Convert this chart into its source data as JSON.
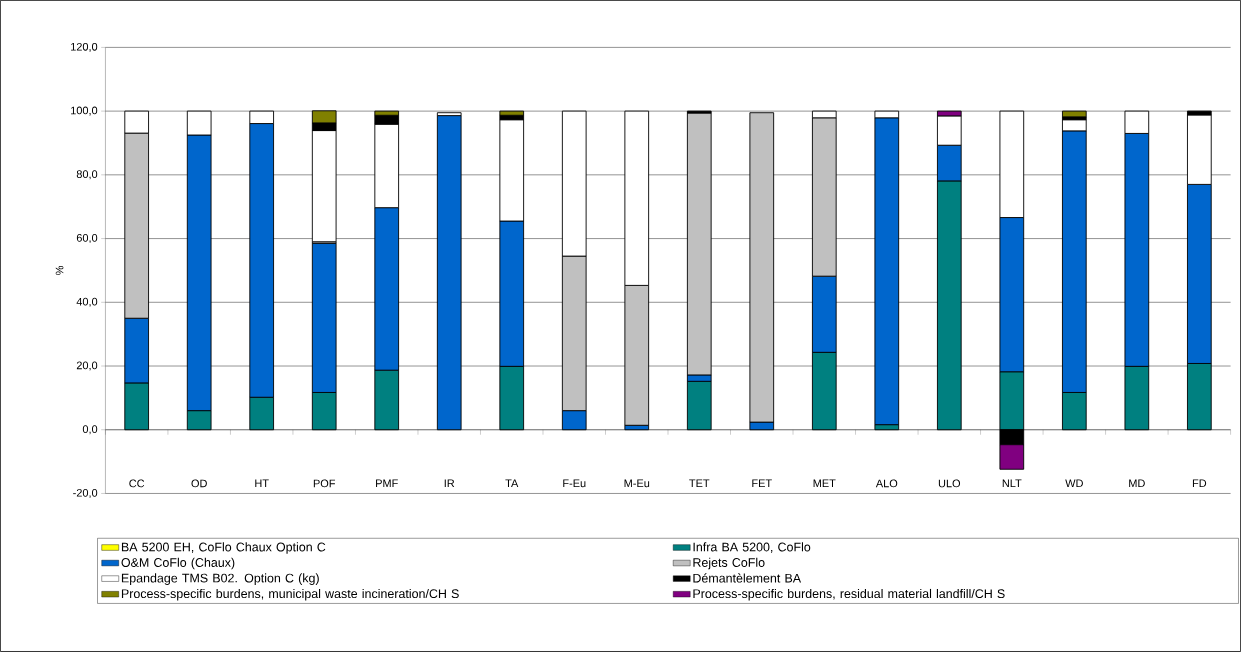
{
  "chart_data": {
    "type": "bar",
    "stacked": true,
    "ylabel": "%",
    "categories": [
      "CC",
      "OD",
      "HT",
      "POF",
      "PMF",
      "IR",
      "TA",
      "F-Eu",
      "M-Eu",
      "TET",
      "FET",
      "MET",
      "ALO",
      "ULO",
      "NLT",
      "WD",
      "MD",
      "FD"
    ],
    "ylim": [
      -20,
      120
    ],
    "yticks": [
      {
        "value": -20,
        "label": "-20,0"
      },
      {
        "value": 0,
        "label": "0,0"
      },
      {
        "value": 20,
        "label": "20,0"
      },
      {
        "value": 40,
        "label": "40,0"
      },
      {
        "value": 60,
        "label": "60,0"
      },
      {
        "value": 80,
        "label": "80,0"
      },
      {
        "value": 100,
        "label": "100,0"
      },
      {
        "value": 120,
        "label": "120,0"
      }
    ],
    "grid": "y",
    "legend": "bottom",
    "series": [
      {
        "name": "BA 5200 EH, CoFlo Chaux Option C",
        "color": "#ffff00",
        "values": [
          0,
          0,
          0,
          0,
          0,
          0,
          0,
          0,
          0,
          0,
          0,
          0,
          0,
          0,
          0,
          0,
          0,
          0
        ]
      },
      {
        "name": "Infra BA 5200, CoFlo",
        "color": "#008080",
        "values": [
          14.7,
          6.0,
          10.2,
          11.7,
          18.7,
          null,
          19.9,
          0,
          0,
          15.2,
          null,
          24.3,
          1.6,
          78.1,
          18.2,
          11.7,
          19.9,
          20.8
        ]
      },
      {
        "name": "O&M CoFlo (Chaux)",
        "color": "#0066cc",
        "values": [
          20.3,
          86.5,
          85.9,
          46.8,
          51.0,
          98.6,
          45.6,
          6.0,
          1.4,
          2.0,
          2.4,
          23.9,
          96.3,
          11.2,
          48.4,
          82.1,
          73.1,
          56.2
        ]
      },
      {
        "name": "Rejets CoFlo",
        "color": "#c0c0c0",
        "values": [
          58.1,
          0,
          0,
          0.5,
          0,
          0,
          0,
          48.5,
          43.9,
          82.2,
          97.1,
          49.7,
          0,
          0,
          0,
          0,
          0,
          0
        ]
      },
      {
        "name": "Epandage TMS B02. Option C (kg)",
        "color": "#ffffff",
        "values": [
          6.9,
          7.5,
          3.9,
          34.9,
          26.2,
          0.9,
          31.8,
          45.5,
          54.7,
          0,
          0,
          2.1,
          2.1,
          9.2,
          33.4,
          3.5,
          7.0,
          21.8
        ]
      },
      {
        "name": "Démantèlement BA",
        "color": "#000000",
        "values": [
          0,
          0,
          0,
          2.4,
          2.8,
          0,
          1.4,
          0,
          0,
          0.6,
          0,
          0,
          0,
          0,
          -4.7,
          0.9,
          0,
          1.2
        ]
      },
      {
        "name": "Process-specific burdens, municipal waste incineration/CH S",
        "color": "#808000",
        "values": [
          0,
          0,
          0,
          3.8,
          1.3,
          0,
          1.3,
          0,
          0,
          0,
          0,
          0,
          0,
          0,
          0,
          1.8,
          0,
          0
        ]
      },
      {
        "name": "Process-specific burdens, residual material landfill/CH S",
        "color": "#800080",
        "values": [
          0,
          0,
          0,
          0,
          0,
          0,
          0,
          0,
          0,
          0,
          0,
          0,
          0,
          1.5,
          -7.7,
          0,
          0,
          0
        ]
      }
    ]
  }
}
